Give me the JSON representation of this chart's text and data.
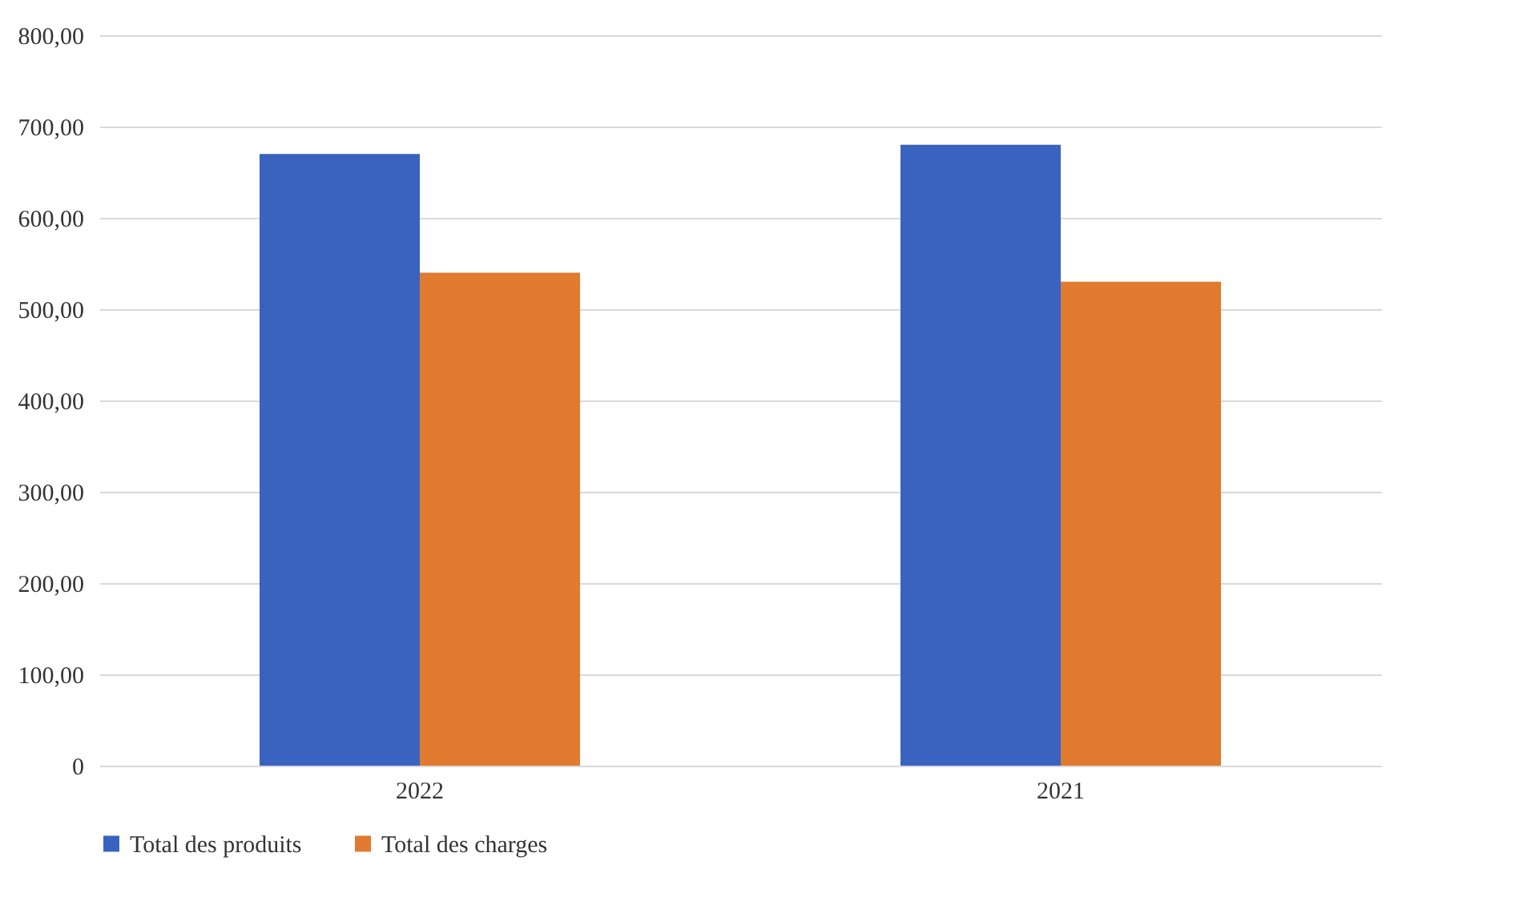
{
  "chart_data": {
    "type": "bar",
    "categories": [
      "2022",
      "2021"
    ],
    "series": [
      {
        "name": "Total des produits",
        "color": "#3a63c0",
        "values": [
          670,
          680
        ]
      },
      {
        "name": "Total des charges",
        "color": "#e07b30",
        "values": [
          540,
          530
        ]
      }
    ],
    "ylim": [
      0,
      800
    ],
    "yticks": [
      {
        "value": 0,
        "label": "0"
      },
      {
        "value": 100,
        "label": "100,00"
      },
      {
        "value": 200,
        "label": "200,00"
      },
      {
        "value": 300,
        "label": "300,00"
      },
      {
        "value": 400,
        "label": "400,00"
      },
      {
        "value": 500,
        "label": "500,00"
      },
      {
        "value": 600,
        "label": "600,00"
      },
      {
        "value": 700,
        "label": "700,00"
      },
      {
        "value": 800,
        "label": "800,00"
      }
    ],
    "grid": "y",
    "legend": "bottom"
  }
}
